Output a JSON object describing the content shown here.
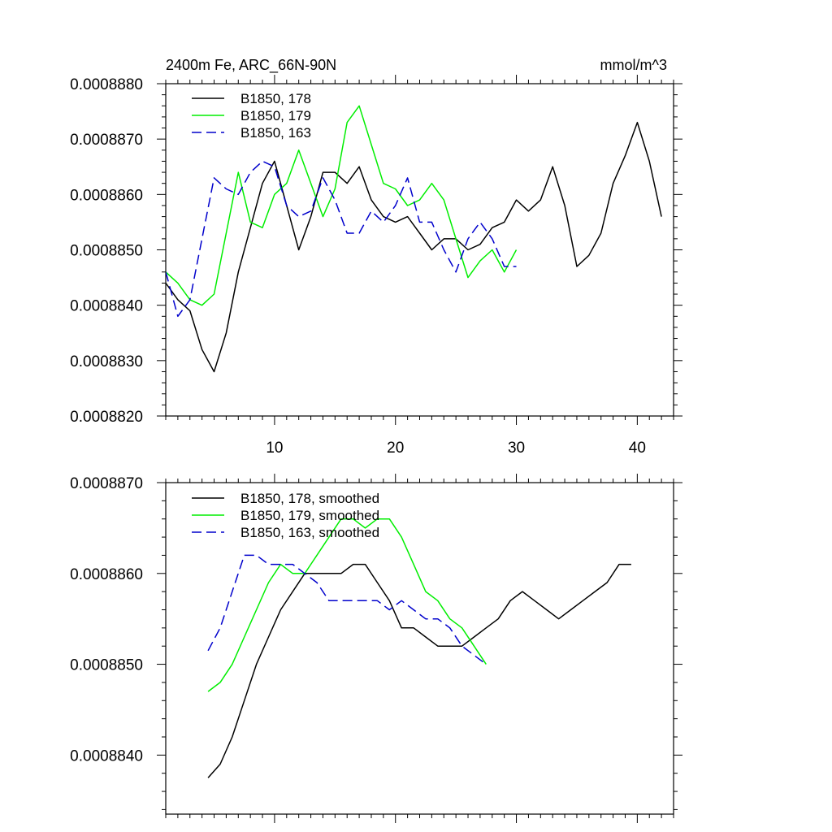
{
  "chart_data": [
    {
      "type": "line",
      "title": "2400m Fe, ARC_66N-90N",
      "units": "mmol/m^3",
      "xlim": [
        1,
        43
      ],
      "ylim": [
        0.000882,
        0.000888
      ],
      "xticks": [
        10,
        20,
        30,
        40
      ],
      "yticks": [
        0.000882,
        0.000883,
        0.000884,
        0.000885,
        0.000886,
        0.000887,
        0.000888
      ],
      "ytick_labels": [
        "0.0008820",
        "0.0008830",
        "0.0008840",
        "0.0008850",
        "0.0008860",
        "0.0008870",
        "0.0008880"
      ],
      "legend_position": "top-left",
      "series": [
        {
          "name": "B1850, 178",
          "color": "#000000",
          "dash": "solid",
          "x": [
            1,
            2,
            3,
            4,
            5,
            6,
            7,
            8,
            9,
            10,
            11,
            12,
            13,
            14,
            15,
            16,
            17,
            18,
            19,
            20,
            21,
            22,
            23,
            24,
            25,
            26,
            27,
            28,
            29,
            30,
            31,
            32,
            33,
            34,
            35,
            36,
            37,
            38,
            39,
            40,
            41,
            42
          ],
          "y": [
            0.0008844,
            0.0008841,
            0.0008839,
            0.0008832,
            0.0008828,
            0.0008835,
            0.0008846,
            0.0008854,
            0.0008862,
            0.0008866,
            0.0008858,
            0.000885,
            0.0008856,
            0.0008864,
            0.0008864,
            0.0008862,
            0.0008865,
            0.0008859,
            0.0008856,
            0.0008855,
            0.0008856,
            0.0008853,
            0.000885,
            0.0008852,
            0.0008852,
            0.000885,
            0.0008851,
            0.0008854,
            0.0008855,
            0.0008859,
            0.0008857,
            0.0008859,
            0.0008865,
            0.0008858,
            0.0008847,
            0.0008849,
            0.0008853,
            0.0008862,
            0.0008867,
            0.0008873,
            0.0008866,
            0.0008856
          ]
        },
        {
          "name": "B1850, 179",
          "color": "#00ee00",
          "dash": "solid",
          "x": [
            1,
            2,
            3,
            4,
            5,
            6,
            7,
            8,
            9,
            10,
            11,
            12,
            13,
            14,
            15,
            16,
            17,
            18,
            19,
            20,
            21,
            22,
            23,
            24,
            25,
            26,
            27,
            28,
            29,
            30
          ],
          "y": [
            0.0008846,
            0.0008844,
            0.0008841,
            0.000884,
            0.0008842,
            0.0008853,
            0.0008864,
            0.0008855,
            0.0008854,
            0.000886,
            0.0008862,
            0.0008868,
            0.0008862,
            0.0008856,
            0.0008861,
            0.0008873,
            0.0008876,
            0.0008869,
            0.0008862,
            0.0008861,
            0.0008858,
            0.0008859,
            0.0008862,
            0.0008859,
            0.0008852,
            0.0008845,
            0.0008848,
            0.000885,
            0.0008846,
            0.000885
          ]
        },
        {
          "name": "B1850, 163",
          "color": "#0000cc",
          "dash": "dashed",
          "x": [
            1,
            2,
            3,
            4,
            5,
            6,
            7,
            8,
            9,
            10,
            11,
            12,
            13,
            14,
            15,
            16,
            17,
            18,
            19,
            20,
            21,
            22,
            23,
            24,
            25,
            26,
            27,
            28,
            29,
            30
          ],
          "y": [
            0.0008846,
            0.0008838,
            0.0008841,
            0.0008852,
            0.0008863,
            0.0008861,
            0.000886,
            0.0008864,
            0.0008866,
            0.0008865,
            0.0008858,
            0.0008856,
            0.0008857,
            0.0008863,
            0.0008859,
            0.0008853,
            0.0008853,
            0.0008857,
            0.0008855,
            0.0008858,
            0.0008863,
            0.0008855,
            0.0008855,
            0.000885,
            0.0008846,
            0.0008852,
            0.0008855,
            0.0008852,
            0.0008847,
            0.0008847
          ]
        }
      ]
    },
    {
      "type": "line",
      "xlim": [
        1,
        43
      ],
      "ylim": [
        0.00088335,
        0.000887
      ],
      "xticks": [
        10,
        20,
        30,
        40
      ],
      "yticks": [
        0.000884,
        0.000885,
        0.000886,
        0.000887
      ],
      "ytick_labels": [
        "0.0008840",
        "0.0008850",
        "0.0008860",
        "0.0008870"
      ],
      "legend_position": "top-left",
      "series": [
        {
          "name": "B1850, 178, smoothed",
          "color": "#000000",
          "dash": "solid",
          "x": [
            4.5,
            5.5,
            6.5,
            7.5,
            8.5,
            9.5,
            10.5,
            11.5,
            12.5,
            13.5,
            14.5,
            15.5,
            16.5,
            17.5,
            18.5,
            19.5,
            20.5,
            21.5,
            22.5,
            23.5,
            24.5,
            25.5,
            26.5,
            27.5,
            28.5,
            29.5,
            30.5,
            31.5,
            32.5,
            33.5,
            34.5,
            35.5,
            36.5,
            37.5,
            38.5,
            39.5
          ],
          "y": [
            0.00088375,
            0.0008839,
            0.0008842,
            0.0008846,
            0.000885,
            0.0008853,
            0.0008856,
            0.0008858,
            0.000886,
            0.000886,
            0.000886,
            0.000886,
            0.0008861,
            0.0008861,
            0.0008859,
            0.0008857,
            0.0008854,
            0.0008854,
            0.0008853,
            0.0008852,
            0.0008852,
            0.0008852,
            0.0008853,
            0.0008854,
            0.0008855,
            0.0008857,
            0.0008858,
            0.0008857,
            0.0008856,
            0.0008855,
            0.0008856,
            0.0008857,
            0.0008858,
            0.0008859,
            0.0008861,
            0.0008861
          ]
        },
        {
          "name": "B1850, 179, smoothed",
          "color": "#00ee00",
          "dash": "solid",
          "x": [
            4.5,
            5.5,
            6.5,
            7.5,
            8.5,
            9.5,
            10.5,
            11.5,
            12.5,
            13.5,
            14.5,
            15.5,
            16.5,
            17.5,
            18.5,
            19.5,
            20.5,
            21.5,
            22.5,
            23.5,
            24.5,
            25.5,
            26.5,
            27.5
          ],
          "y": [
            0.0008847,
            0.0008848,
            0.000885,
            0.0008853,
            0.0008856,
            0.0008859,
            0.0008861,
            0.000886,
            0.000886,
            0.0008862,
            0.0008864,
            0.0008866,
            0.0008866,
            0.0008865,
            0.0008866,
            0.0008866,
            0.0008864,
            0.0008861,
            0.0008858,
            0.0008857,
            0.0008855,
            0.0008854,
            0.0008852,
            0.000885
          ]
        },
        {
          "name": "B1850, 163, smoothed",
          "color": "#0000cc",
          "dash": "dashed",
          "x": [
            4.5,
            5.5,
            6.5,
            7.5,
            8.5,
            9.5,
            10.5,
            11.5,
            12.5,
            13.5,
            14.5,
            15.5,
            16.5,
            17.5,
            18.5,
            19.5,
            20.5,
            21.5,
            22.5,
            23.5,
            24.5,
            25.5,
            26.5,
            27.5
          ],
          "y": [
            0.00088515,
            0.0008854,
            0.0008858,
            0.0008862,
            0.0008862,
            0.0008861,
            0.0008861,
            0.0008861,
            0.000886,
            0.0008859,
            0.0008857,
            0.0008857,
            0.0008857,
            0.0008857,
            0.0008857,
            0.0008856,
            0.0008857,
            0.0008856,
            0.0008855,
            0.0008855,
            0.0008854,
            0.0008852,
            0.0008851,
            0.000885
          ]
        }
      ]
    }
  ]
}
